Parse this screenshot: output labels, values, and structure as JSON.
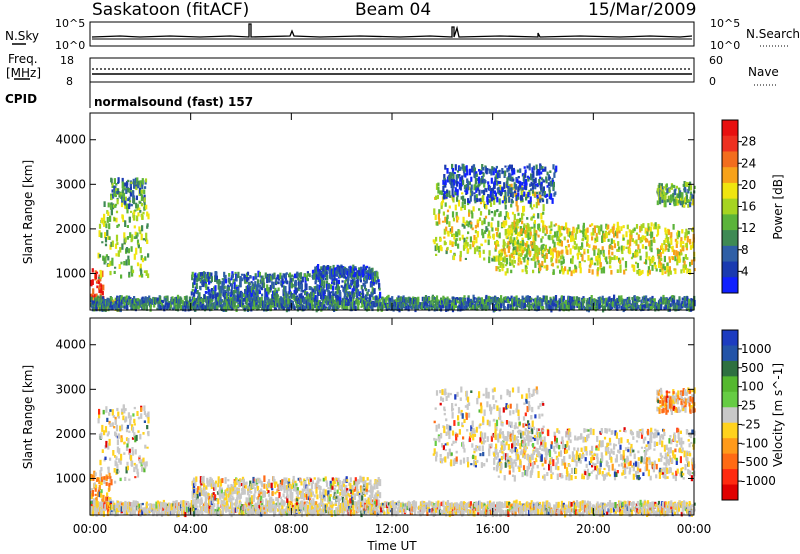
{
  "header": {
    "station": "Saskatoon (fitACF)",
    "beam": "Beam 04",
    "date": "15/Mar/2009"
  },
  "top_strip": {
    "left_label": "N.Sky",
    "left_ticks": [
      "10^5",
      "10^0"
    ],
    "right_label": "N.Search",
    "right_ticks": [
      "10^5",
      "10^0"
    ]
  },
  "freq_strip": {
    "left_label_1": "Freq.",
    "left_label_2": "[MHz]",
    "left_ticks": [
      "18",
      "8"
    ],
    "right_label": "Nave",
    "right_ticks": [
      "60",
      "0"
    ],
    "cpid_label": "CPID",
    "program": "normalsound (fast) 157"
  },
  "colors": {
    "power": [
      "#1020ff",
      "#1a3ab0",
      "#2f5fa6",
      "#3f8a54",
      "#5bb33a",
      "#a6d421",
      "#f0e50f",
      "#f7a21a",
      "#f26d1d",
      "#ee3020",
      "#e81010"
    ],
    "velocity": [
      "#1d3cc0",
      "#2454a8",
      "#2e7040",
      "#55b82f",
      "#66cc44",
      "#c8c8c8",
      "#ffd21e",
      "#ff9a1a",
      "#ff6a14",
      "#ff2a10",
      "#e00000"
    ]
  },
  "chart_data": [
    {
      "type": "heatmap",
      "panel": "power",
      "ylabel": "Slant Range [km]",
      "xlabel": "Time UT",
      "x_ticks": [
        "00:00",
        "04:00",
        "08:00",
        "12:00",
        "16:00",
        "20:00",
        "00:00"
      ],
      "y_ticks": [
        "1000",
        "2000",
        "3000",
        "4000"
      ],
      "xlim_hours": [
        0,
        24
      ],
      "ylim_km": [
        180,
        4600
      ],
      "colorbar": {
        "label": "Power [dB]",
        "ticks": [
          "4",
          "8",
          "12",
          "16",
          "20",
          "24",
          "28"
        ],
        "range": [
          0,
          30
        ]
      },
      "regions": [
        {
          "t0": 0.0,
          "t1": 0.5,
          "r0": 400,
          "r1": 1100,
          "level": 0.95
        },
        {
          "t0": 0.0,
          "t1": 1.2,
          "r0": 200,
          "r1": 400,
          "level": 0.6
        },
        {
          "t0": 0.3,
          "t1": 2.3,
          "r0": 900,
          "r1": 2600,
          "level": 0.45
        },
        {
          "t0": 0.8,
          "t1": 2.2,
          "r0": 2500,
          "r1": 3100,
          "level": 0.3
        },
        {
          "t0": 0.0,
          "t1": 24.0,
          "r0": 200,
          "r1": 450,
          "level": 0.25
        },
        {
          "t0": 4.0,
          "t1": 11.5,
          "r0": 450,
          "r1": 1000,
          "level": 0.2
        },
        {
          "t0": 8.8,
          "t1": 11.2,
          "r0": 900,
          "r1": 1150,
          "level": 0.15
        },
        {
          "t0": 13.6,
          "t1": 18.0,
          "r0": 1300,
          "r1": 3000,
          "level": 0.5
        },
        {
          "t0": 16.0,
          "t1": 24.0,
          "r0": 1000,
          "r1": 2100,
          "level": 0.55
        },
        {
          "t0": 22.5,
          "t1": 24.0,
          "r0": 2500,
          "r1": 3000,
          "level": 0.4
        },
        {
          "t0": 14.0,
          "t1": 18.5,
          "r0": 2600,
          "r1": 3400,
          "level": 0.15
        }
      ]
    },
    {
      "type": "heatmap",
      "panel": "velocity",
      "ylabel": "Slant Range [km]",
      "xlabel": "Time UT",
      "x_ticks": [
        "00:00",
        "04:00",
        "08:00",
        "12:00",
        "16:00",
        "20:00",
        "00:00"
      ],
      "y_ticks": [
        "1000",
        "2000",
        "3000",
        "4000"
      ],
      "xlim_hours": [
        0,
        24
      ],
      "ylim_km": [
        180,
        4600
      ],
      "colorbar": {
        "label": "Velocity [m s^-1]",
        "ticks": [
          "1000",
          "500",
          "100",
          "25",
          "-25",
          "-100",
          "-500",
          "-1000"
        ]
      },
      "regions": [
        {
          "t0": 0.0,
          "t1": 0.8,
          "r0": 400,
          "r1": 1100,
          "level": 0.7
        },
        {
          "t0": 0.3,
          "t1": 2.3,
          "r0": 900,
          "r1": 2600,
          "level": 0.5
        },
        {
          "t0": 0.0,
          "t1": 24.0,
          "r0": 200,
          "r1": 450,
          "level": 0.55
        },
        {
          "t0": 4.0,
          "t1": 11.5,
          "r0": 450,
          "r1": 1000,
          "level": 0.5
        },
        {
          "t0": 13.6,
          "t1": 18.0,
          "r0": 1300,
          "r1": 3000,
          "level": 0.5
        },
        {
          "t0": 16.0,
          "t1": 24.0,
          "r0": 1000,
          "r1": 2100,
          "level": 0.5
        },
        {
          "t0": 22.5,
          "t1": 24.0,
          "r0": 2500,
          "r1": 3000,
          "level": 0.75
        }
      ]
    }
  ]
}
